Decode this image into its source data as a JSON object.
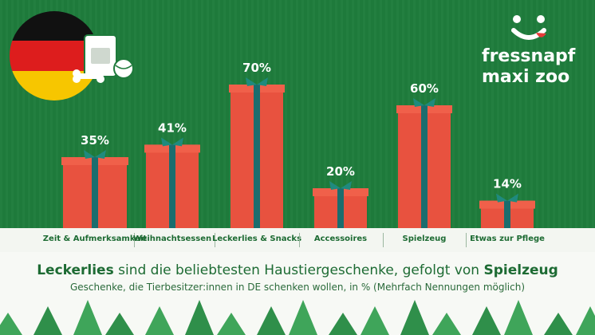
{
  "chart_data": {
    "type": "bar",
    "categories": [
      "Zeit & Aufmerksamkeit",
      "Weihnachtsessen",
      "Leckerlies & Snacks",
      "Accessoires",
      "Spielzeug",
      "Etwas zur Pflege"
    ],
    "values": [
      35,
      41,
      70,
      20,
      60,
      14
    ],
    "value_labels": [
      "35%",
      "41%",
      "70%",
      "20%",
      "60%",
      "14%"
    ],
    "ylim": [
      0,
      100
    ],
    "grid": false,
    "colors": {
      "bar": "#e8523f",
      "ribbon": "#1b6d6e",
      "bow": "#1f8a7e",
      "label": "#ffffff"
    }
  },
  "headline": {
    "part1": "Leckerlies",
    "part2": " sind die beliebtesten Haustiergeschenke, gefolgt von ",
    "part3": "Spielzeug"
  },
  "subheadline": "Geschenke, die Tierbesitzer:innen in DE schenken wollen, in % (Mehrfach Nennungen möglich)",
  "brand": {
    "line1": "fressnapf",
    "line2": "maxi zoo"
  },
  "icons": [
    "germany-flag-icon",
    "pet-food-bag-icon",
    "dog-bone-icon",
    "ball-icon",
    "brand-face-icon",
    "christmas-tree-icon"
  ]
}
